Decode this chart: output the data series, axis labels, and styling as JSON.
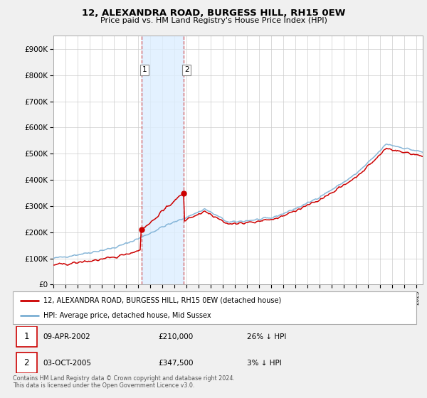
{
  "title": "12, ALEXANDRA ROAD, BURGESS HILL, RH15 0EW",
  "subtitle": "Price paid vs. HM Land Registry's House Price Index (HPI)",
  "legend_label_red": "12, ALEXANDRA ROAD, BURGESS HILL, RH15 0EW (detached house)",
  "legend_label_blue": "HPI: Average price, detached house, Mid Sussex",
  "footnote": "Contains HM Land Registry data © Crown copyright and database right 2024.\nThis data is licensed under the Open Government Licence v3.0.",
  "table_rows": [
    {
      "num": "1",
      "date": "09-APR-2002",
      "price": "£210,000",
      "pct": "26% ↓ HPI"
    },
    {
      "num": "2",
      "date": "03-OCT-2005",
      "price": "£347,500",
      "pct": "3% ↓ HPI"
    }
  ],
  "sale1_year": 2002.27,
  "sale1_price": 210000,
  "sale2_year": 2005.75,
  "sale2_price": 347500,
  "shade_x1": 2002.27,
  "shade_x2": 2005.75,
  "red_color": "#cc0000",
  "blue_color": "#7bafd4",
  "shade_color": "#ddeeff",
  "dashed_color": "#cc3333",
  "bg_color": "#f0f0f0",
  "ylim_max": 950000,
  "ylim_min": 0,
  "xmin": 1995,
  "xmax": 2025.5
}
